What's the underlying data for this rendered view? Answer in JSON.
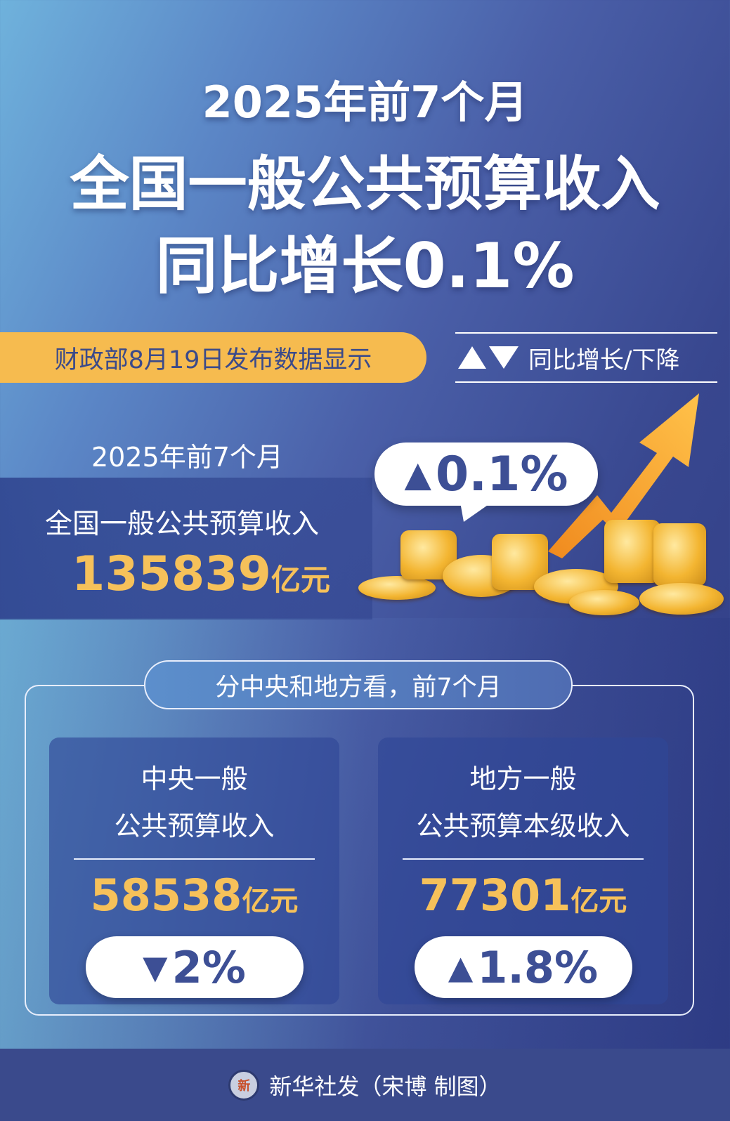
{
  "title": {
    "line1": "2025年前7个月",
    "line2": "全国一般公共预算收入",
    "line3": "同比增长0.1%"
  },
  "source_banner": "财政部8月19日发布数据显示",
  "legend": {
    "icons": [
      "triangle-up-icon",
      "triangle-down-icon"
    ],
    "label": "同比增长/下降"
  },
  "national": {
    "period": "2025年前7个月",
    "label": "全国一般公共预算收入",
    "value": "135839",
    "unit": "亿元",
    "change": "0.1%",
    "direction": "up"
  },
  "breakdown": {
    "header": "分中央和地方看，前7个月",
    "cards": [
      {
        "line1": "中央一般",
        "line2": "公共预算收入",
        "value": "58538",
        "unit": "亿元",
        "change": "2%",
        "direction": "down",
        "arrow": "▼"
      },
      {
        "line1": "地方一般",
        "line2": "公共预算本级收入",
        "value": "77301",
        "unit": "亿元",
        "change": "1.8%",
        "direction": "up",
        "arrow": "▲"
      }
    ]
  },
  "footer": {
    "logo_text": "XINHUA",
    "credit": "新华社发（宋博 制图）"
  },
  "colors": {
    "accent_yellow": "#f6bb4f",
    "dark_blue": "#3a4a8c",
    "text_blue": "#3d4f95"
  }
}
